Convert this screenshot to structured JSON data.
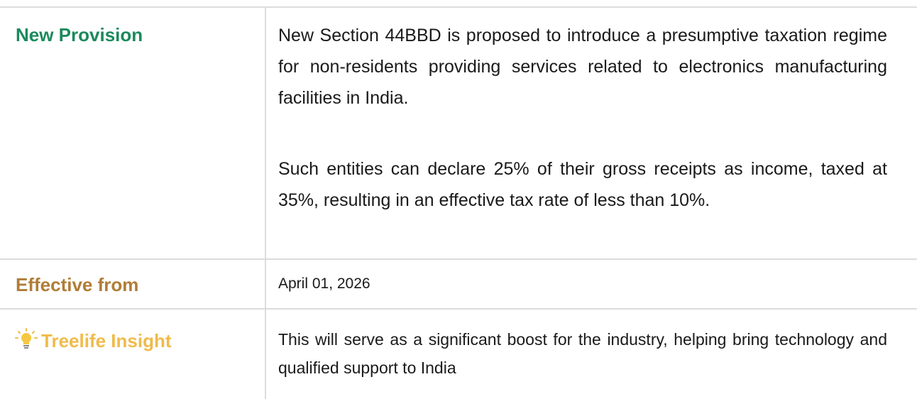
{
  "rows": [
    {
      "label": "New Provision",
      "paragraphs": [
        "New Section 44BBD is proposed to introduce a presumptive taxation regime for non-residents providing services related to electronics manufacturing facilities in India.",
        "Such entities can declare 25% of their gross receipts as income, taxed at 35%, resulting in an effective tax rate of less than 10%."
      ]
    },
    {
      "label": "Effective from",
      "paragraphs": [
        "April 01, 2026"
      ]
    },
    {
      "label": "Treelife Insight",
      "paragraphs": [
        "This will serve as a significant boost for the industry, helping bring technology and qualified support to India"
      ]
    }
  ]
}
